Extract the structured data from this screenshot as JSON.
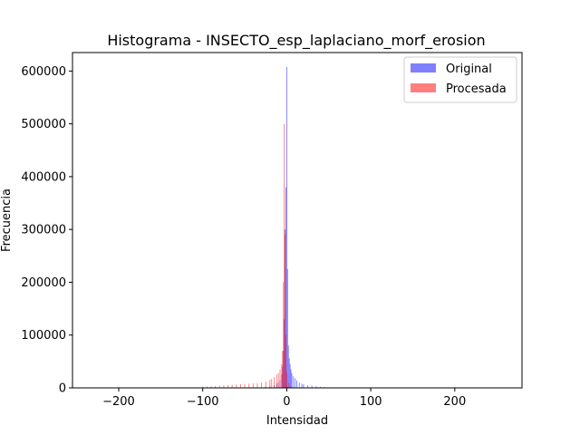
{
  "chart_data": {
    "type": "bar",
    "title": "Histograma - INSECTO_esp_laplaciano_morf_erosion",
    "xlabel": "Intensidad",
    "ylabel": "Frecuencia",
    "xlim": [
      -255,
      280
    ],
    "ylim": [
      0,
      635000
    ],
    "xticks": [
      -200,
      -100,
      0,
      100,
      200
    ],
    "xtick_labels": [
      "−200",
      "−100",
      "0",
      "100",
      "200"
    ],
    "yticks": [
      0,
      100000,
      200000,
      300000,
      400000,
      500000,
      600000
    ],
    "ytick_labels": [
      "0",
      "100000",
      "200000",
      "300000",
      "400000",
      "500000",
      "600000"
    ],
    "grid": false,
    "legend_position": "top-right",
    "series": [
      {
        "name": "Original",
        "color": "#0000ff",
        "opacity": 0.5,
        "x": [
          -30,
          -25,
          -20,
          -15,
          -12,
          -10,
          -8,
          -6,
          -5,
          -4,
          -3,
          -2,
          -1,
          0,
          1,
          2,
          3,
          4,
          5,
          6,
          8,
          10,
          12,
          15,
          18,
          20,
          25,
          30,
          35,
          40,
          45,
          50
        ],
        "values": [
          1000,
          2000,
          3000,
          5000,
          8000,
          10000,
          15000,
          25000,
          40000,
          70000,
          130000,
          300000,
          380000,
          608000,
          225000,
          80000,
          56000,
          45000,
          35000,
          28000,
          22000,
          18000,
          14000,
          10000,
          8000,
          7000,
          5000,
          4000,
          3000,
          2000,
          1500,
          1000
        ]
      },
      {
        "name": "Procesada",
        "color": "#ff0000",
        "opacity": 0.5,
        "x": [
          -100,
          -95,
          -90,
          -85,
          -80,
          -75,
          -70,
          -65,
          -60,
          -55,
          -50,
          -45,
          -40,
          -35,
          -30,
          -25,
          -20,
          -18,
          -15,
          -12,
          -10,
          -8,
          -6,
          -5,
          -4,
          -3,
          -2,
          -1,
          0,
          2,
          4
        ],
        "values": [
          2000,
          2500,
          3000,
          3500,
          4000,
          5000,
          5500,
          6000,
          6500,
          7000,
          7500,
          8000,
          8500,
          9000,
          10000,
          12000,
          15000,
          17000,
          20000,
          25000,
          28000,
          35000,
          45000,
          70000,
          200000,
          500000,
          290000,
          100000,
          30000,
          10000,
          3000
        ]
      }
    ]
  }
}
